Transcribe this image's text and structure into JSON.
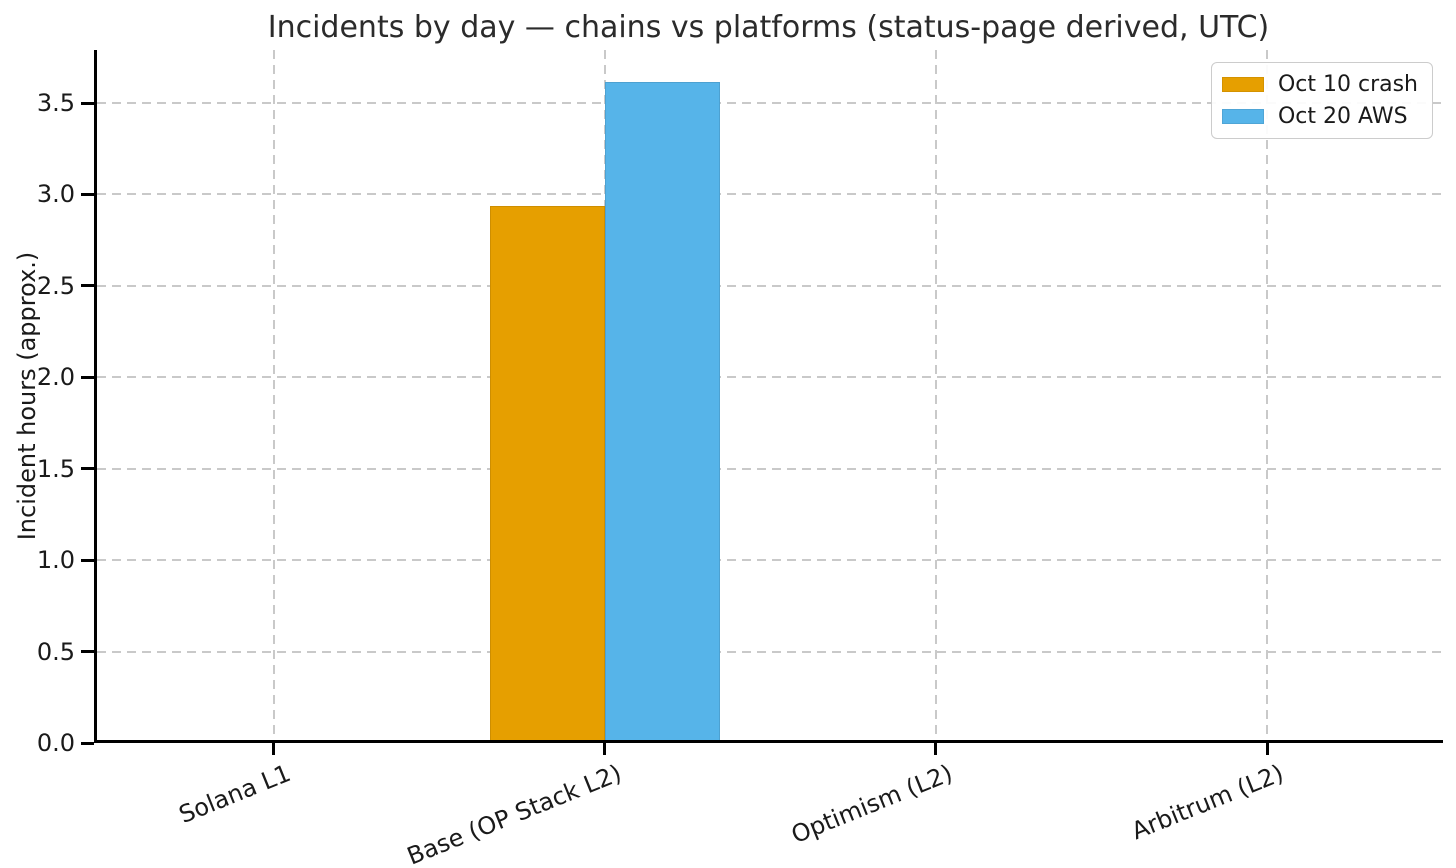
{
  "chart_data": {
    "type": "bar",
    "title": "Incidents by day — chains vs platforms (status-page derived, UTC)",
    "xlabel": "",
    "ylabel": "Incident hours (approx.)",
    "categories": [
      "Solana L1",
      "Base (OP Stack L2)",
      "Optimism (L2)",
      "Arbitrum (L2)"
    ],
    "series": [
      {
        "name": "Oct 10 crash",
        "color": "#E69F00",
        "values": [
          0,
          2.92,
          0,
          0
        ]
      },
      {
        "name": "Oct 20 AWS",
        "color": "#56B4E9",
        "values": [
          0,
          3.6,
          0,
          0
        ]
      }
    ],
    "ylim": [
      0,
      3.79
    ],
    "yticks": [
      0.0,
      0.5,
      1.0,
      1.5,
      2.0,
      2.5,
      3.0,
      3.5
    ],
    "ytick_labels": [
      "0.0",
      "0.5",
      "1.0",
      "1.5",
      "2.0",
      "2.5",
      "3.0",
      "3.5"
    ],
    "grid": true,
    "grid_style": "dashed",
    "legend_position": "upper right",
    "colors": {
      "grid": "#c9c9c9",
      "spine": "#000000",
      "text": "#1a1a1a"
    }
  }
}
